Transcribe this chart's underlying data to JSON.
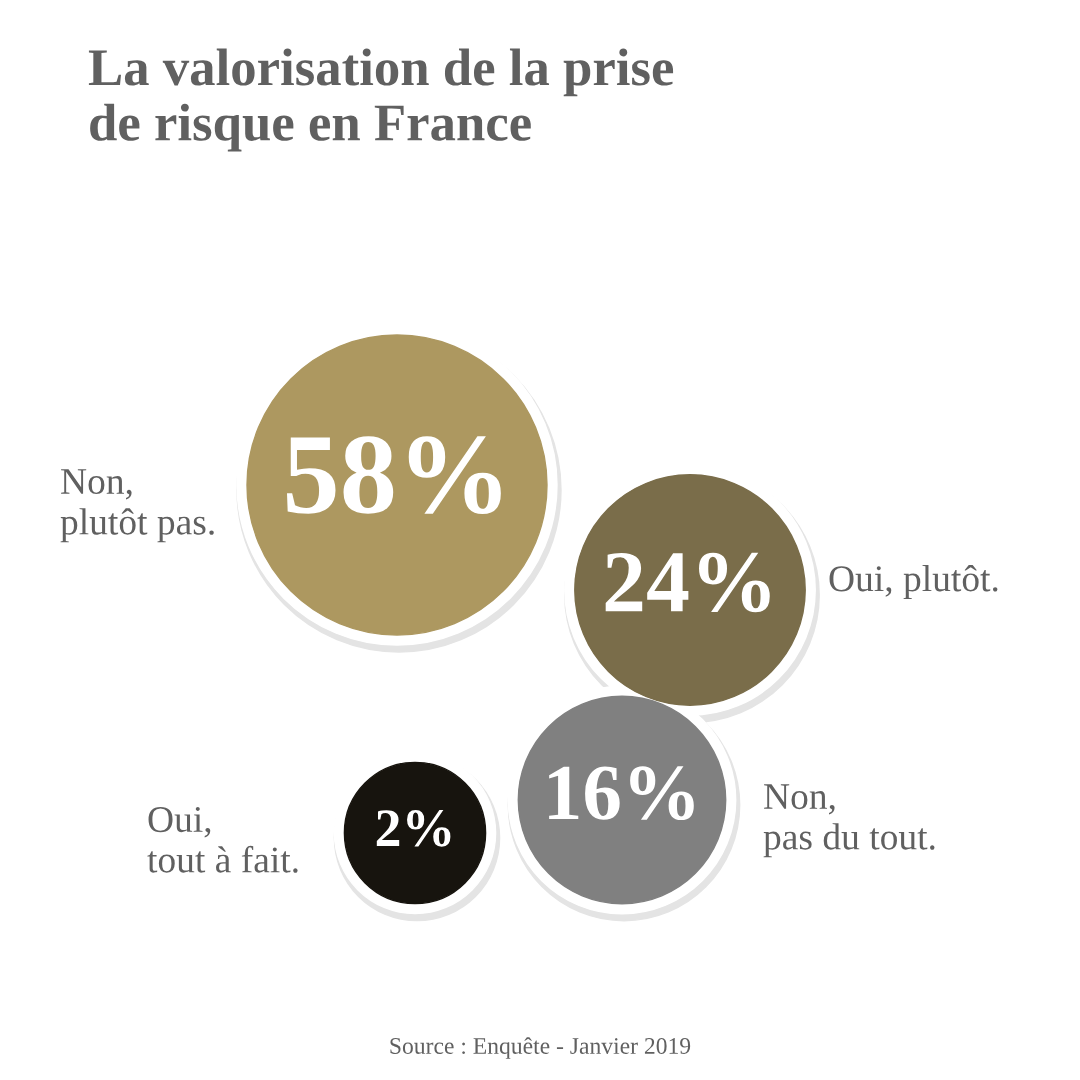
{
  "chart_data": {
    "type": "other",
    "title": "La valorisation de la prise\nde risque en France",
    "categories": [
      "Non,\nplutôt pas.",
      "Oui, plutôt.",
      "Non,\npas du tout.",
      "Oui,\ntout à fait."
    ],
    "values": [
      58,
      24,
      16,
      2
    ],
    "value_labels": [
      "58%",
      "24%",
      "16%",
      "2%"
    ],
    "colors": [
      "#ad9860",
      "#7a6d4a",
      "#808080",
      "#17140e"
    ],
    "annotations": [
      "Source : Enquête - Janvier 2019"
    ]
  }
}
